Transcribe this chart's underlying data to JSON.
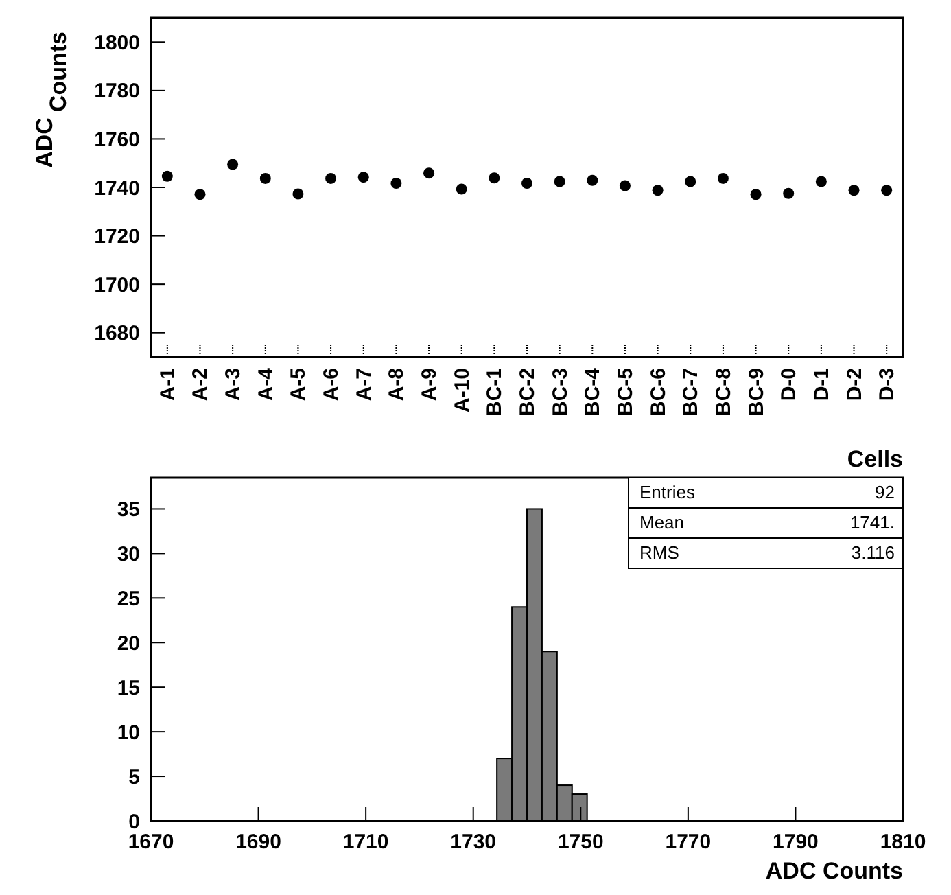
{
  "chart_data": [
    {
      "type": "scatter",
      "xlabel": "Cells",
      "ylabel": "ADC$_{Counts}$",
      "categories": [
        "A-1",
        "A-2",
        "A-3",
        "A-4",
        "A-5",
        "A-6",
        "A-7",
        "A-8",
        "A-9",
        "A-10",
        "BC-1",
        "BC-2",
        "BC-3",
        "BC-4",
        "BC-5",
        "BC-6",
        "BC-7",
        "BC-8",
        "BC-9",
        "D-0",
        "D-1",
        "D-2",
        "D-3"
      ],
      "series": [
        {
          "color": "#000000",
          "values": [
            1744.6,
            1737.1,
            1749.5,
            1743.7,
            1737.3,
            1743.7,
            1744.2,
            1741.7,
            1745.9,
            1739.3,
            1743.9,
            1741.7,
            1742.4,
            1742.9,
            1740.7,
            1738.8,
            1742.4,
            1743.7,
            1737.1,
            1737.5,
            1742.4,
            1738.8,
            1738.8
          ]
        }
      ],
      "ylim": [
        1670,
        1810
      ],
      "yticks": [
        1680,
        1700,
        1720,
        1740,
        1760,
        1780,
        1800
      ],
      "marker": "circle",
      "grid": false
    },
    {
      "type": "histogram",
      "xlabel": "ADC Counts",
      "bins": [
        1734.4,
        1737.2,
        1740.0,
        1742.8,
        1745.6,
        1748.4,
        1751.2
      ],
      "values": [
        7,
        24,
        35,
        19,
        4,
        3
      ],
      "color": "#7a7a7a",
      "xlim": [
        1670,
        1810
      ],
      "xticks": [
        1670,
        1690,
        1710,
        1730,
        1750,
        1770,
        1790,
        1810
      ],
      "ylim": [
        0,
        38.5
      ],
      "yticks": [
        0,
        5,
        10,
        15,
        20,
        25,
        30,
        35
      ],
      "grid": false,
      "annotations": [
        "Entries",
        "92",
        "Mean",
        "1741.",
        "RMS",
        "3.116"
      ]
    }
  ]
}
